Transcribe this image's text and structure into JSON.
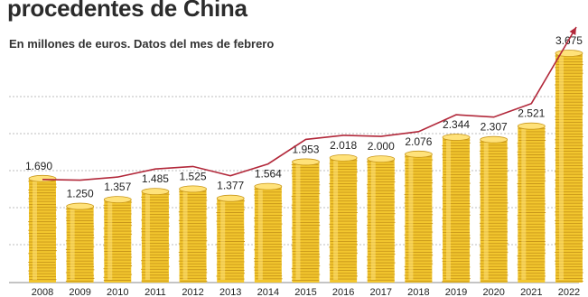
{
  "header": {
    "title": "procedentes de China",
    "subtitle": "En millones de euros. Datos del mes de febrero"
  },
  "colors": {
    "coin_fill": "#f2c62e",
    "coin_edge": "#c9971a",
    "coin_highlight": "#ffe27a",
    "line": "#b2283a",
    "grid": "#bdbdbd",
    "axis": "#8a8a8a"
  },
  "chart_data": {
    "type": "bar",
    "categories": [
      "2008",
      "2009",
      "2010",
      "2011",
      "2012",
      "2013",
      "2014",
      "2015",
      "2016",
      "2017",
      "2018",
      "2019",
      "2020",
      "2021",
      "2022"
    ],
    "values": [
      1690,
      1250,
      1357,
      1485,
      1525,
      1377,
      1564,
      1953,
      2018,
      2000,
      2076,
      2344,
      2307,
      2521,
      3675
    ],
    "value_labels": [
      "1.690",
      "1.250",
      "1.357",
      "1.485",
      "1.525",
      "1.377",
      "1.564",
      "1.953",
      "2.018",
      "2.000",
      "2.076",
      "2.344",
      "2.307",
      "2.521",
      "3.675"
    ],
    "title": "procedentes de China",
    "subtitle": "En millones de euros. Datos del mes de febrero",
    "xlabel": "",
    "ylabel": "",
    "ylim": [
      0,
      3675
    ],
    "grid": true,
    "legend": "none",
    "overlay": "trend line with arrow at the last value"
  }
}
